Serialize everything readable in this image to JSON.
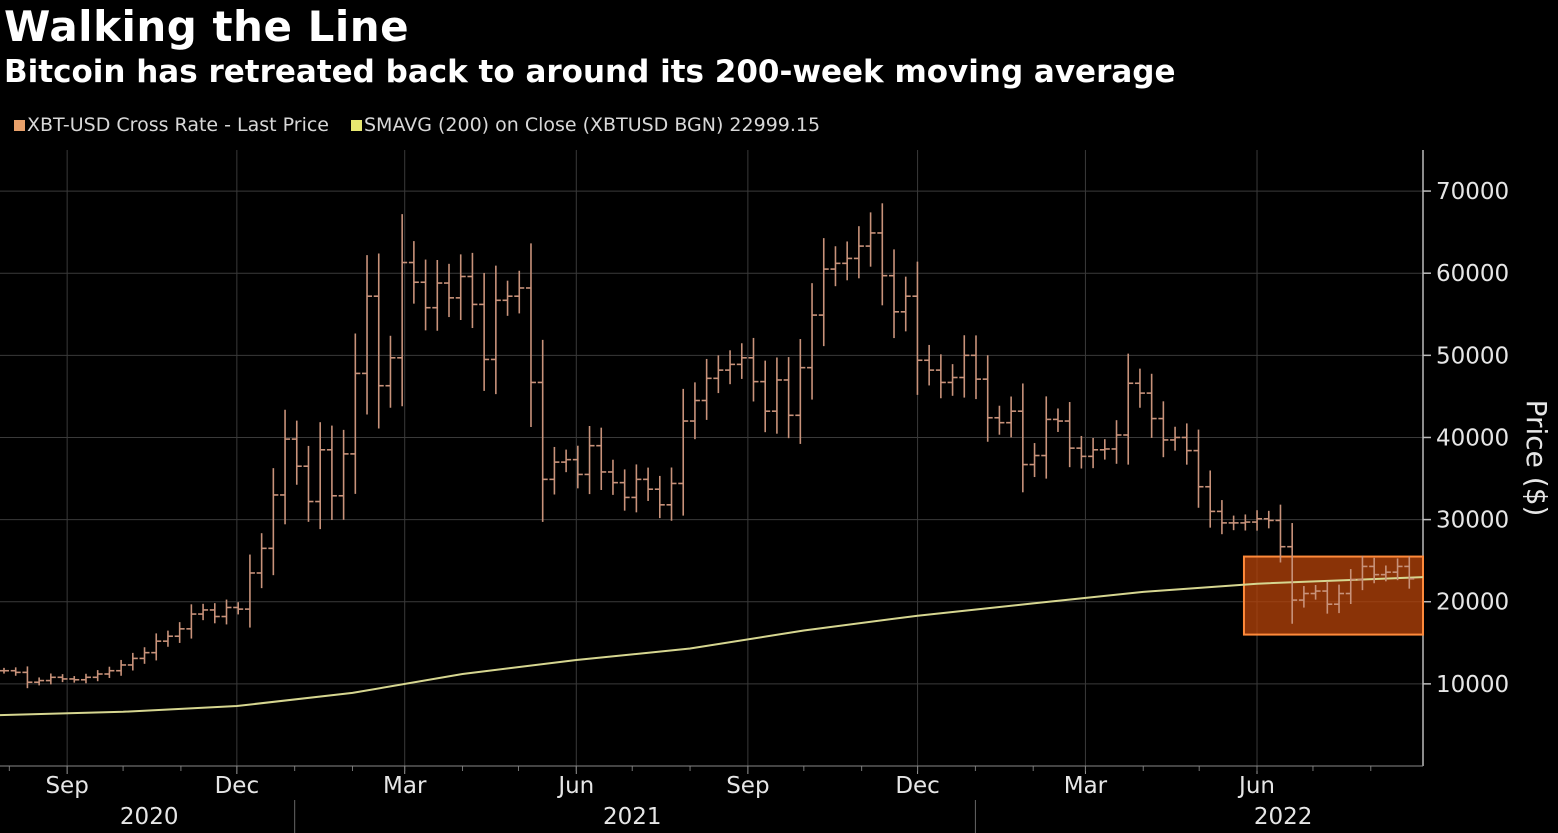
{
  "title": "Walking the Line",
  "subtitle": "Bitcoin has retreated back to around its 200-week moving average",
  "legend": [
    {
      "label": "XBT-USD Cross Rate - Last Price",
      "color": "#e8a06a"
    },
    {
      "label": "SMAVG (200)  on Close (XBTUSD BGN) 22999.15",
      "color": "#e8e870"
    }
  ],
  "colors": {
    "price_bars": "#c8927a",
    "sma_line": "#d6d690",
    "highlight_fill": "#b8440a",
    "highlight_border": "#ff8a3a",
    "grid": "#3a3a3a",
    "background": "#000000"
  },
  "chart_data": {
    "type": "ohlc-bar",
    "x_range": [
      "2020-07-27",
      "2022-08-29"
    ],
    "ylabel": "Price ($)",
    "ylim": [
      0,
      75000
    ],
    "y_ticks": [
      10000,
      20000,
      30000,
      40000,
      50000,
      60000,
      70000
    ],
    "y_tick_labels": [
      "10000",
      "20000",
      "30000",
      "40000",
      "50000",
      "60000",
      "70000"
    ],
    "x_month_ticks": [
      {
        "date": "2020-09-01",
        "label": "Sep"
      },
      {
        "date": "2020-12-01",
        "label": "Dec"
      },
      {
        "date": "2021-03-01",
        "label": "Mar"
      },
      {
        "date": "2021-06-01",
        "label": "Jun"
      },
      {
        "date": "2021-09-01",
        "label": "Sep"
      },
      {
        "date": "2021-12-01",
        "label": "Dec"
      },
      {
        "date": "2022-03-01",
        "label": "Mar"
      },
      {
        "date": "2022-06-01",
        "label": "Jun"
      }
    ],
    "x_year_labels": [
      {
        "label": "2020",
        "date": "2020-10-15"
      },
      {
        "label": "2021",
        "date": "2021-07-01"
      },
      {
        "label": "2022",
        "date": "2022-06-15"
      }
    ],
    "x_year_dividers": [
      "2021-01-01",
      "2022-01-01"
    ],
    "grid": true,
    "weekly_close": [
      11600,
      11400,
      10200,
      10400,
      10800,
      10600,
      10500,
      10800,
      11200,
      11600,
      12300,
      13100,
      13800,
      15200,
      15800,
      16700,
      18500,
      19000,
      18200,
      19300,
      19100,
      23500,
      26500,
      33000,
      39800,
      36500,
      32200,
      38500,
      32900,
      38000,
      47800,
      57200,
      46300,
      49700,
      61300,
      58900,
      55800,
      58800,
      57000,
      59600,
      56200,
      49500,
      56700,
      57200,
      58200,
      46700,
      34900,
      37000,
      37300,
      35500,
      39000,
      35800,
      34500,
      32700,
      34900,
      33700,
      31800,
      34400,
      42000,
      44500,
      47200,
      48200,
      48900,
      49700,
      46800,
      43200,
      47000,
      42700,
      48500,
      54900,
      60500,
      61200,
      61800,
      63300,
      64900,
      59700,
      55300,
      57200,
      49400,
      48200,
      46700,
      47300,
      50000,
      47100,
      42400,
      41800,
      43200,
      36700,
      37800,
      42200,
      42000,
      38700,
      37700,
      38500,
      38600,
      40300,
      46600,
      45400,
      42300,
      39700,
      40000,
      38400,
      34000,
      31000,
      29600,
      29600,
      29700,
      30100,
      29900,
      26700,
      20200,
      21000,
      21300,
      19700,
      21000,
      22700,
      24300,
      23300,
      23600,
      24300,
      22800
    ],
    "sma_200w": {
      "dates": [
        "2020-07-27",
        "2020-10-01",
        "2020-12-01",
        "2021-02-01",
        "2021-04-01",
        "2021-06-01",
        "2021-08-01",
        "2021-10-01",
        "2021-12-01",
        "2022-02-01",
        "2022-04-01",
        "2022-06-01",
        "2022-08-29"
      ],
      "values": [
        6200,
        6600,
        7300,
        8900,
        11200,
        12900,
        14300,
        16500,
        18300,
        19800,
        21200,
        22200,
        23000
      ]
    },
    "highlight_box": {
      "start": "2022-05-25",
      "end": "2022-08-29",
      "y_low": 16000,
      "y_high": 25500
    }
  }
}
